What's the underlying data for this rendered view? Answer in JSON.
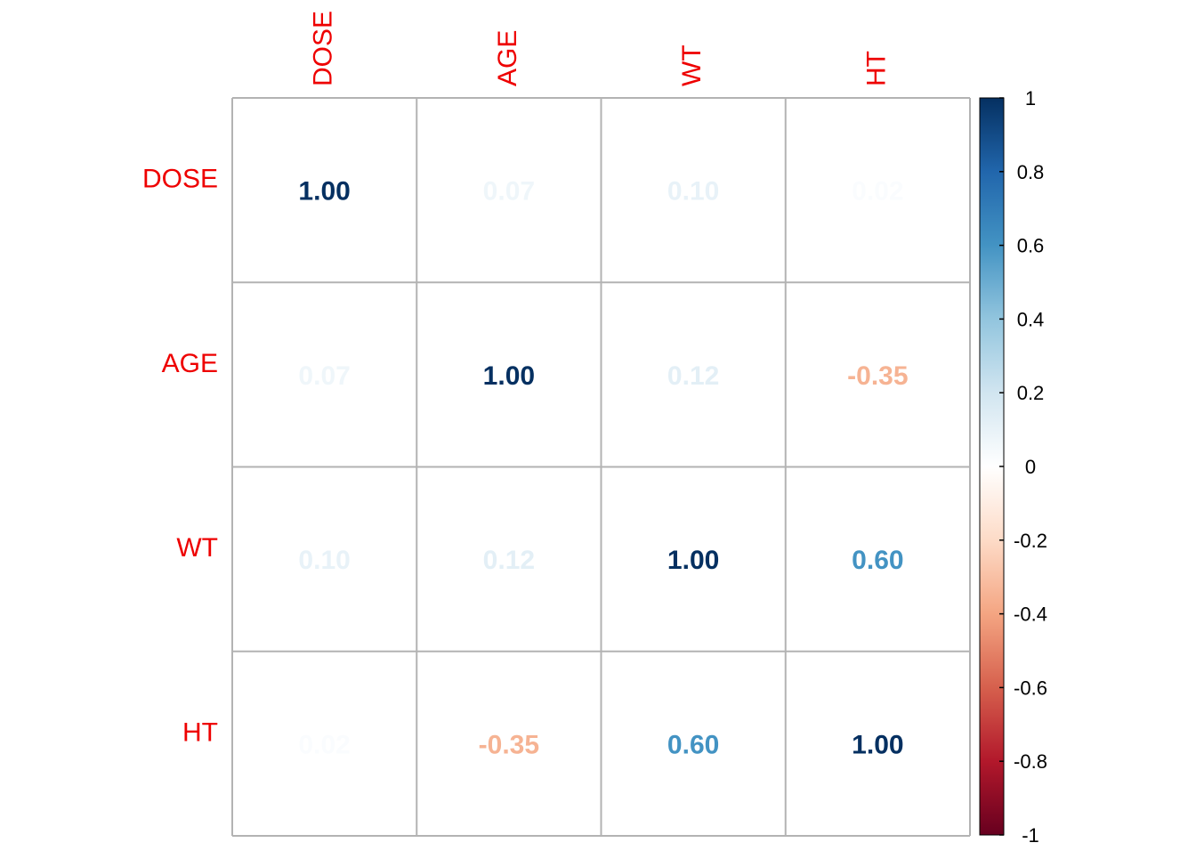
{
  "chart_data": {
    "type": "heatmap",
    "variables": [
      "DOSE",
      "AGE",
      "WT",
      "HT"
    ],
    "matrix": [
      [
        1.0,
        0.07,
        0.1,
        0.02
      ],
      [
        0.07,
        1.0,
        0.12,
        -0.35
      ],
      [
        0.1,
        0.12,
        1.0,
        0.6
      ],
      [
        0.02,
        -0.35,
        0.6,
        1.0
      ]
    ],
    "value_format": "2 decimals",
    "colorbar": {
      "range": [
        -1,
        1
      ],
      "tick_labels": [
        "1",
        "0.8",
        "0.6",
        "0.4",
        "0.2",
        "0",
        "-0.2",
        "-0.4",
        "-0.6",
        "-0.8",
        "-1"
      ],
      "tick_values": [
        1,
        0.8,
        0.6,
        0.4,
        0.2,
        0,
        -0.2,
        -0.4,
        -0.6,
        -0.8,
        -1
      ],
      "placement": "right"
    },
    "colors": {
      "label_color": "#ee0000",
      "grid_color": "#b3b3b3",
      "palette": [
        "#67001f",
        "#b2182b",
        "#d6604d",
        "#f4a582",
        "#fddbc7",
        "#ffffff",
        "#d1e5f0",
        "#92c5de",
        "#4393c3",
        "#2166ac",
        "#053061"
      ]
    }
  }
}
